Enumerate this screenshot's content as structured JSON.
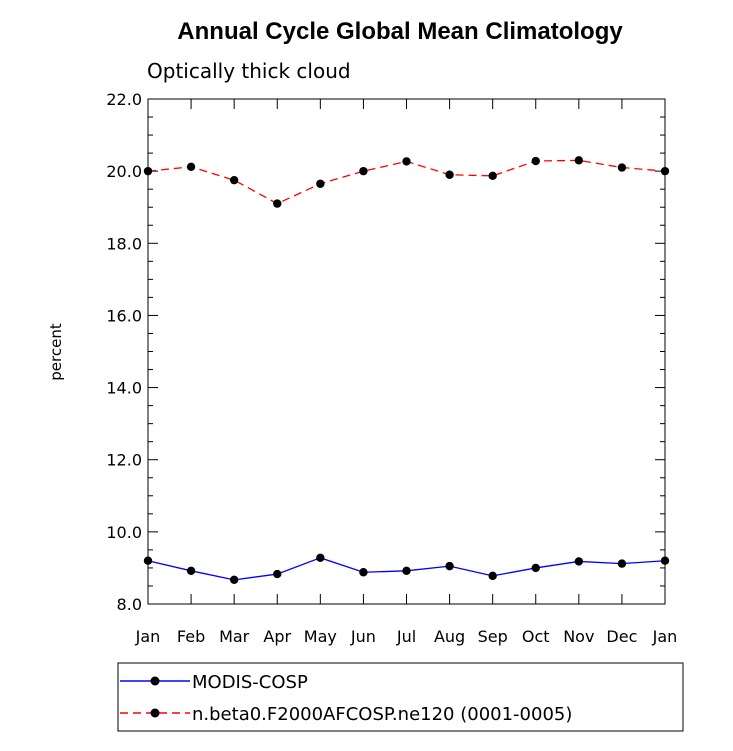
{
  "chart_data": {
    "type": "line",
    "title": "Annual Cycle Global Mean Climatology",
    "subtitle": "Optically thick cloud",
    "xlabel": "",
    "ylabel": "percent",
    "categories": [
      "Jan",
      "Feb",
      "Mar",
      "Apr",
      "May",
      "Jun",
      "Jul",
      "Aug",
      "Sep",
      "Oct",
      "Nov",
      "Dec",
      "Jan"
    ],
    "ylim": [
      8.0,
      22.0
    ],
    "yticks": [
      8.0,
      10.0,
      12.0,
      14.0,
      16.0,
      18.0,
      20.0,
      22.0
    ],
    "ytick_labels": [
      "8.0",
      "10.0",
      "12.0",
      "14.0",
      "16.0",
      "18.0",
      "20.0",
      "22.0"
    ],
    "grid": false,
    "legend_position": "bottom",
    "series": [
      {
        "name": "MODIS-COSP",
        "color": "#0000ff",
        "line_style": "solid",
        "marker": "circle",
        "values": [
          9.2,
          8.92,
          8.67,
          8.83,
          9.28,
          8.88,
          8.92,
          9.05,
          8.78,
          9.0,
          9.18,
          9.12,
          9.2
        ]
      },
      {
        "name": "n.beta0.F2000AFCOSP.ne120 (0001-0005)",
        "color": "#ff0000",
        "line_style": "dashed",
        "marker": "circle",
        "values": [
          20.0,
          20.12,
          19.75,
          19.1,
          19.65,
          20.0,
          20.27,
          19.9,
          19.87,
          20.28,
          20.3,
          20.1,
          20.0
        ]
      }
    ]
  }
}
